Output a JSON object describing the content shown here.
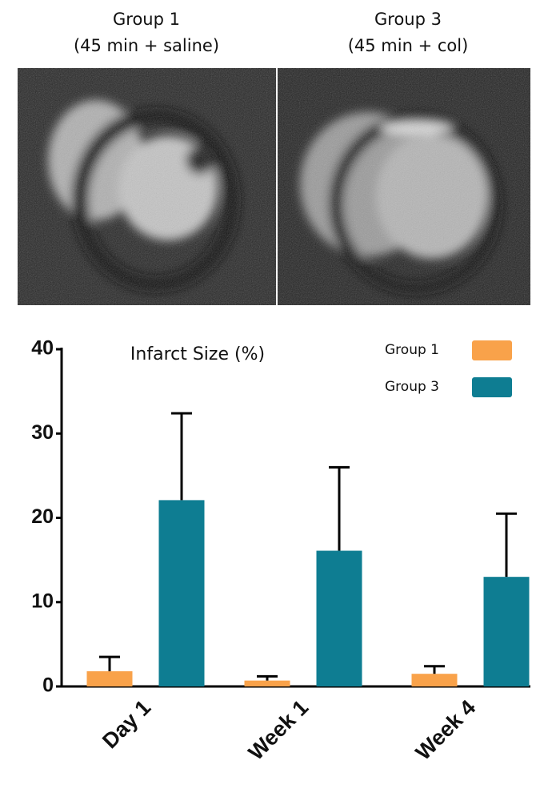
{
  "images": [
    {
      "title": "Group 1",
      "subtitle": "(45 min + saline)"
    },
    {
      "title": "Group 3",
      "subtitle": "(45 min + col)"
    }
  ],
  "chart_data": {
    "type": "bar",
    "title": "Infarct Size (%)",
    "categories": [
      "Day 1",
      "Week 1",
      "Week 4"
    ],
    "series": [
      {
        "name": "Group 1",
        "color": "#f9a24a",
        "values": [
          1.8,
          0.7,
          1.5
        ],
        "errors": [
          1.7,
          0.5,
          0.9
        ]
      },
      {
        "name": "Group 3",
        "color": "#0e7d92",
        "values": [
          22.1,
          16.1,
          13.0
        ],
        "errors": [
          10.3,
          9.9,
          7.5
        ]
      }
    ],
    "ylim": [
      0,
      40
    ],
    "yticks": [
      0,
      10,
      20,
      30,
      40
    ],
    "grid": false,
    "legend": "top-right"
  }
}
